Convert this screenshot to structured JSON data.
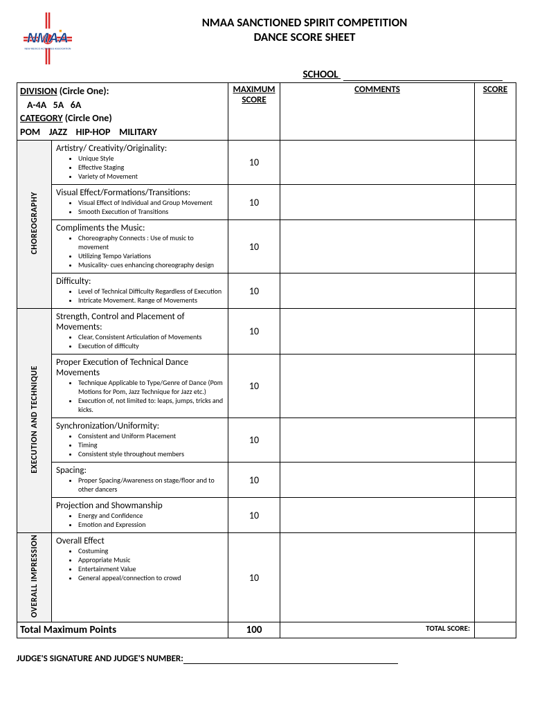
{
  "header": {
    "logo_text": "NMAA",
    "logo_sub": "NEW MEXICO ACTIVITIES ASSOCIATION",
    "title1": "NMAA SANCTIONED SPIRIT COMPETITION",
    "title2": "DANCE SCORE SHEET",
    "school_label": "SCHOOL"
  },
  "colors": {
    "section_bg": "#f2f2f2",
    "logo_red": "#d92b2b",
    "logo_blue": "#0f3f8a",
    "logo_orange": "#f5a623"
  },
  "columns": {
    "max": "MAXIMUM SCORE",
    "comments": "COMMENTS",
    "score": "SCORE"
  },
  "division": {
    "label": "DIVISION",
    "suffix": " (Circle One):",
    "options": [
      "A-4A",
      "5A",
      "6A"
    ],
    "category_label": "CATEGORY",
    "category_suffix": " (Circle One)",
    "categories": [
      "POM",
      "JAZZ",
      "HIP-HOP",
      "MILITARY"
    ]
  },
  "sections": [
    {
      "label": "CHOREOGRAPHY",
      "rows": [
        {
          "title": "Artistry/ Creativity/Originality:",
          "bullets": [
            "Unique Style",
            "Effective Staging",
            "Variety of Movement"
          ],
          "max": 10
        },
        {
          "title": "Visual Effect/Formations/Transitions:",
          "bullets": [
            "Visual Effect of Individual and Group Movement",
            "Smooth Execution of Transitions"
          ],
          "max": 10
        },
        {
          "title": "Compliments the Music:",
          "bullets": [
            "Choreography Connects : Use of music to movement",
            "Utilizing Tempo Variations",
            "Musicality- cues enhancing choreography design"
          ],
          "max": 10
        },
        {
          "title": "Difficulty:",
          "bullets": [
            "Level of Technical Difficulty Regardless of Execution",
            "Intricate Movement. Range of Movements"
          ],
          "max": 10
        }
      ]
    },
    {
      "label": "EXECUTION AND TECHNIQUE",
      "rows": [
        {
          "title": "Strength, Control and Placement of Movements:",
          "bullets": [
            "Clear, Consistent Articulation of Movements",
            "Execution of difficulty"
          ],
          "max": 10
        },
        {
          "title": "Proper Execution of Technical Dance Movements",
          "bullets": [
            "Technique Applicable to Type/Genre of Dance (Pom Motions for Pom, Jazz Technique for Jazz etc.)",
            "Execution of, not limited to: leaps, jumps, tricks and kicks."
          ],
          "max": 10
        },
        {
          "title": "Synchronization/Uniformity:",
          "bullets": [
            "Consistent and Uniform Placement",
            "Timing",
            "Consistent style throughout members"
          ],
          "max": 10
        },
        {
          "title": "Spacing:",
          "bullets": [
            "Proper Spacing/Awareness on stage/floor and to other dancers"
          ],
          "max": 10
        },
        {
          "title": "Projection and Showmanship",
          "bullets": [
            "Energy and Confidence",
            "Emotion and Expression"
          ],
          "max": 10
        }
      ]
    },
    {
      "label": "OVERALL IMPRESSION",
      "rows": [
        {
          "title": "Overall Effect",
          "bullets": [
            "Costuming",
            "Appropriate Music",
            "Entertainment Value",
            "General appeal/connection to crowd"
          ],
          "max": 10
        }
      ]
    }
  ],
  "totals": {
    "label": "Total Maximum Points",
    "max": 100,
    "score_label": "TOTAL SCORE:"
  },
  "signature": {
    "label": "JUDGE'S SIGNATURE AND JUDGE'S NUMBER:"
  }
}
